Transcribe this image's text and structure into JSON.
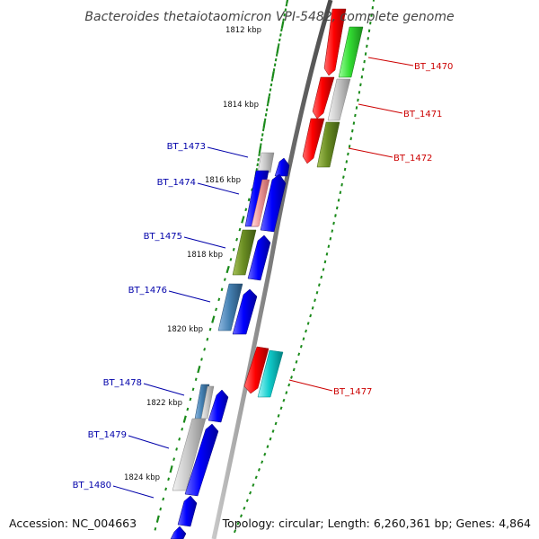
{
  "title": "Bacteroides thetaiotaomicron VPI-5482, complete genome",
  "footer": {
    "accession": "Accession: NC_004663",
    "summary": "Topology: circular; Length: 6,260,361 bp; Genes: 4,864"
  },
  "ticks": [
    {
      "label": "1812 kbp",
      "kbp": 1812
    },
    {
      "label": "1814 kbp",
      "kbp": 1814
    },
    {
      "label": "1816 kbp",
      "kbp": 1816
    },
    {
      "label": "1818 kbp",
      "kbp": 1818
    },
    {
      "label": "1820 kbp",
      "kbp": 1820
    },
    {
      "label": "1822 kbp",
      "kbp": 1822
    },
    {
      "label": "1824 kbp",
      "kbp": 1824
    }
  ],
  "genes": [
    {
      "id": "BT_1470",
      "strand": "reverse",
      "color": "#cc0000"
    },
    {
      "id": "BT_1471",
      "strand": "reverse",
      "color": "#cc0000"
    },
    {
      "id": "BT_1472",
      "strand": "reverse",
      "color": "#cc0000"
    },
    {
      "id": "BT_1473",
      "strand": "forward",
      "color": "#0000aa"
    },
    {
      "id": "BT_1474",
      "strand": "forward",
      "color": "#0000aa"
    },
    {
      "id": "BT_1475",
      "strand": "forward",
      "color": "#0000aa"
    },
    {
      "id": "BT_1476",
      "strand": "forward",
      "color": "#0000aa"
    },
    {
      "id": "BT_1477",
      "strand": "reverse",
      "color": "#cc0000"
    },
    {
      "id": "BT_1478",
      "strand": "forward",
      "color": "#0000aa"
    },
    {
      "id": "BT_1479",
      "strand": "forward",
      "color": "#0000aa"
    },
    {
      "id": "BT_1480",
      "strand": "forward",
      "color": "#0000aa"
    }
  ],
  "colors": {
    "backbone": "#808080",
    "tick_marks": "#1a8a1a",
    "cds_forward": "#0000ee",
    "cds_reverse": "#ee0000",
    "cog_green": "#33cc33",
    "cog_gray": "#c0c0c0",
    "cog_olive": "#6b8e23",
    "cog_steelblue": "#4682b4",
    "cog_cyan": "#00cccc",
    "cog_pink": "#ee9999"
  }
}
